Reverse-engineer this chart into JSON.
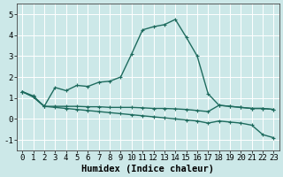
{
  "xlabel": "Humidex (Indice chaleur)",
  "background_color": "#cce8e8",
  "grid_color": "#ffffff",
  "line_color": "#1e6b5e",
  "xlim": [
    -0.5,
    23.5
  ],
  "ylim": [
    -1.5,
    5.5
  ],
  "yticks": [
    -1,
    0,
    1,
    2,
    3,
    4,
    5
  ],
  "xticks": [
    0,
    1,
    2,
    3,
    4,
    5,
    6,
    7,
    8,
    9,
    10,
    11,
    12,
    13,
    14,
    15,
    16,
    17,
    18,
    19,
    20,
    21,
    22,
    23
  ],
  "line1_x": [
    0,
    1,
    2,
    3,
    4,
    5,
    6,
    7,
    8,
    9,
    10,
    11,
    12,
    13,
    14,
    15,
    16,
    17,
    18,
    19,
    20,
    21,
    22,
    23
  ],
  "line1_y": [
    1.3,
    1.1,
    0.6,
    1.5,
    1.35,
    1.6,
    1.55,
    1.75,
    1.8,
    2.0,
    3.1,
    4.25,
    4.4,
    4.5,
    4.75,
    3.9,
    3.0,
    1.2,
    0.65,
    0.6,
    0.55,
    0.5,
    0.5,
    0.45
  ],
  "line2_x": [
    0,
    1,
    2,
    3,
    4,
    5,
    6,
    7,
    8,
    9,
    10,
    11,
    12,
    13,
    14,
    15,
    16,
    17,
    18,
    19,
    20,
    21,
    22,
    23
  ],
  "line2_y": [
    1.3,
    1.05,
    0.6,
    0.6,
    0.6,
    0.6,
    0.58,
    0.58,
    0.55,
    0.55,
    0.55,
    0.53,
    0.5,
    0.5,
    0.48,
    0.45,
    0.4,
    0.35,
    0.65,
    0.6,
    0.55,
    0.5,
    0.5,
    0.45
  ],
  "line3_x": [
    0,
    1,
    2,
    3,
    4,
    5,
    6,
    7,
    8,
    9,
    10,
    11,
    12,
    13,
    14,
    15,
    16,
    17,
    18,
    19,
    20,
    21,
    22,
    23
  ],
  "line3_y": [
    1.3,
    1.05,
    0.6,
    0.55,
    0.5,
    0.45,
    0.4,
    0.35,
    0.3,
    0.25,
    0.2,
    0.15,
    0.1,
    0.05,
    0.0,
    -0.05,
    -0.1,
    -0.2,
    -0.1,
    -0.15,
    -0.2,
    -0.3,
    -0.75,
    -0.9
  ],
  "marker": "+",
  "marker_size": 3.5,
  "markeredgewidth": 0.8,
  "linewidth": 1.0,
  "font_size": 6.5,
  "xlabel_fontsize": 7.5
}
